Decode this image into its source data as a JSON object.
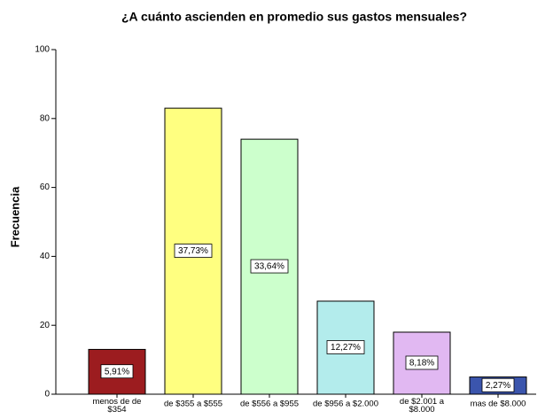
{
  "chart_data": {
    "type": "bar",
    "title": "¿A cuánto ascienden en promedio sus gastos mensuales?",
    "y_label": "Frecuencia",
    "categories": [
      "menos de de\n$354",
      "de $355 a $555",
      "de $556 a $955",
      "de $956 a $2.000",
      "de $2.001 a\n$8.000",
      "mas de $8.000"
    ],
    "values": [
      13,
      83,
      74,
      27,
      18,
      5
    ],
    "colors": [
      "#9c1c1f",
      "#ffff80",
      "#ccffcc",
      "#b3ecec",
      "#e1b8f2",
      "#3b55ad"
    ],
    "percent": {
      "values": [
        5.91,
        37.73,
        33.64,
        12.27,
        8.18,
        2.27
      ],
      "value_labels": [
        "5,91%",
        "37,73%",
        "33,64%",
        "12,27%",
        "8,18%",
        "2,27%"
      ]
    },
    "ylim": [
      0,
      100
    ],
    "yticks": [
      0,
      20,
      40,
      60,
      80,
      100
    ]
  }
}
